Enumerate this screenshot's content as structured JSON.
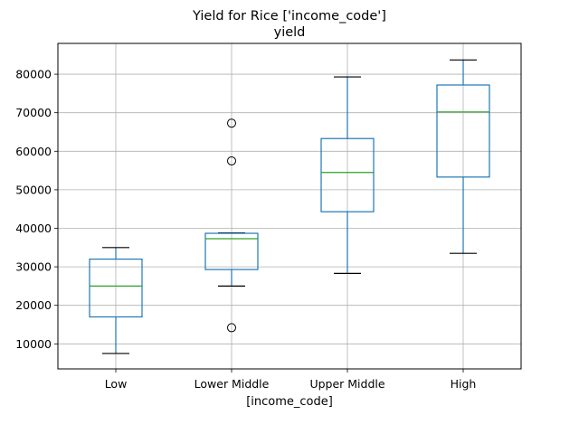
{
  "chart_data": {
    "type": "boxplot",
    "title": "Yield for Rice ['income_code']",
    "subtitle": "yield",
    "xlabel": "[income_code]",
    "ylabel": "",
    "ylim": [
      3500,
      88000
    ],
    "yticks": [
      10000,
      20000,
      30000,
      40000,
      50000,
      60000,
      70000,
      80000
    ],
    "grid": true,
    "categories": [
      "Low",
      "Lower Middle",
      "Upper Middle",
      "High"
    ],
    "boxes": [
      {
        "category": "Low",
        "whislo": 7500,
        "q1": 17000,
        "med": 25000,
        "q3": 32000,
        "whishi": 35000,
        "fliers": []
      },
      {
        "category": "Lower Middle",
        "whislo": 25000,
        "q1": 29300,
        "med": 37300,
        "q3": 38700,
        "whishi": 38800,
        "fliers": [
          14200,
          57500,
          67300
        ]
      },
      {
        "category": "Upper Middle",
        "whislo": 28300,
        "q1": 44300,
        "med": 54500,
        "q3": 63300,
        "whishi": 79300,
        "fliers": []
      },
      {
        "category": "High",
        "whislo": 33500,
        "q1": 53300,
        "med": 70200,
        "q3": 77200,
        "whishi": 83700,
        "fliers": []
      }
    ],
    "colors": {
      "box": "#1f77b4",
      "median": "#2ca02c",
      "whisker_cap": "#000000",
      "grid": "#b0b0b0",
      "flier": "#000000"
    }
  }
}
